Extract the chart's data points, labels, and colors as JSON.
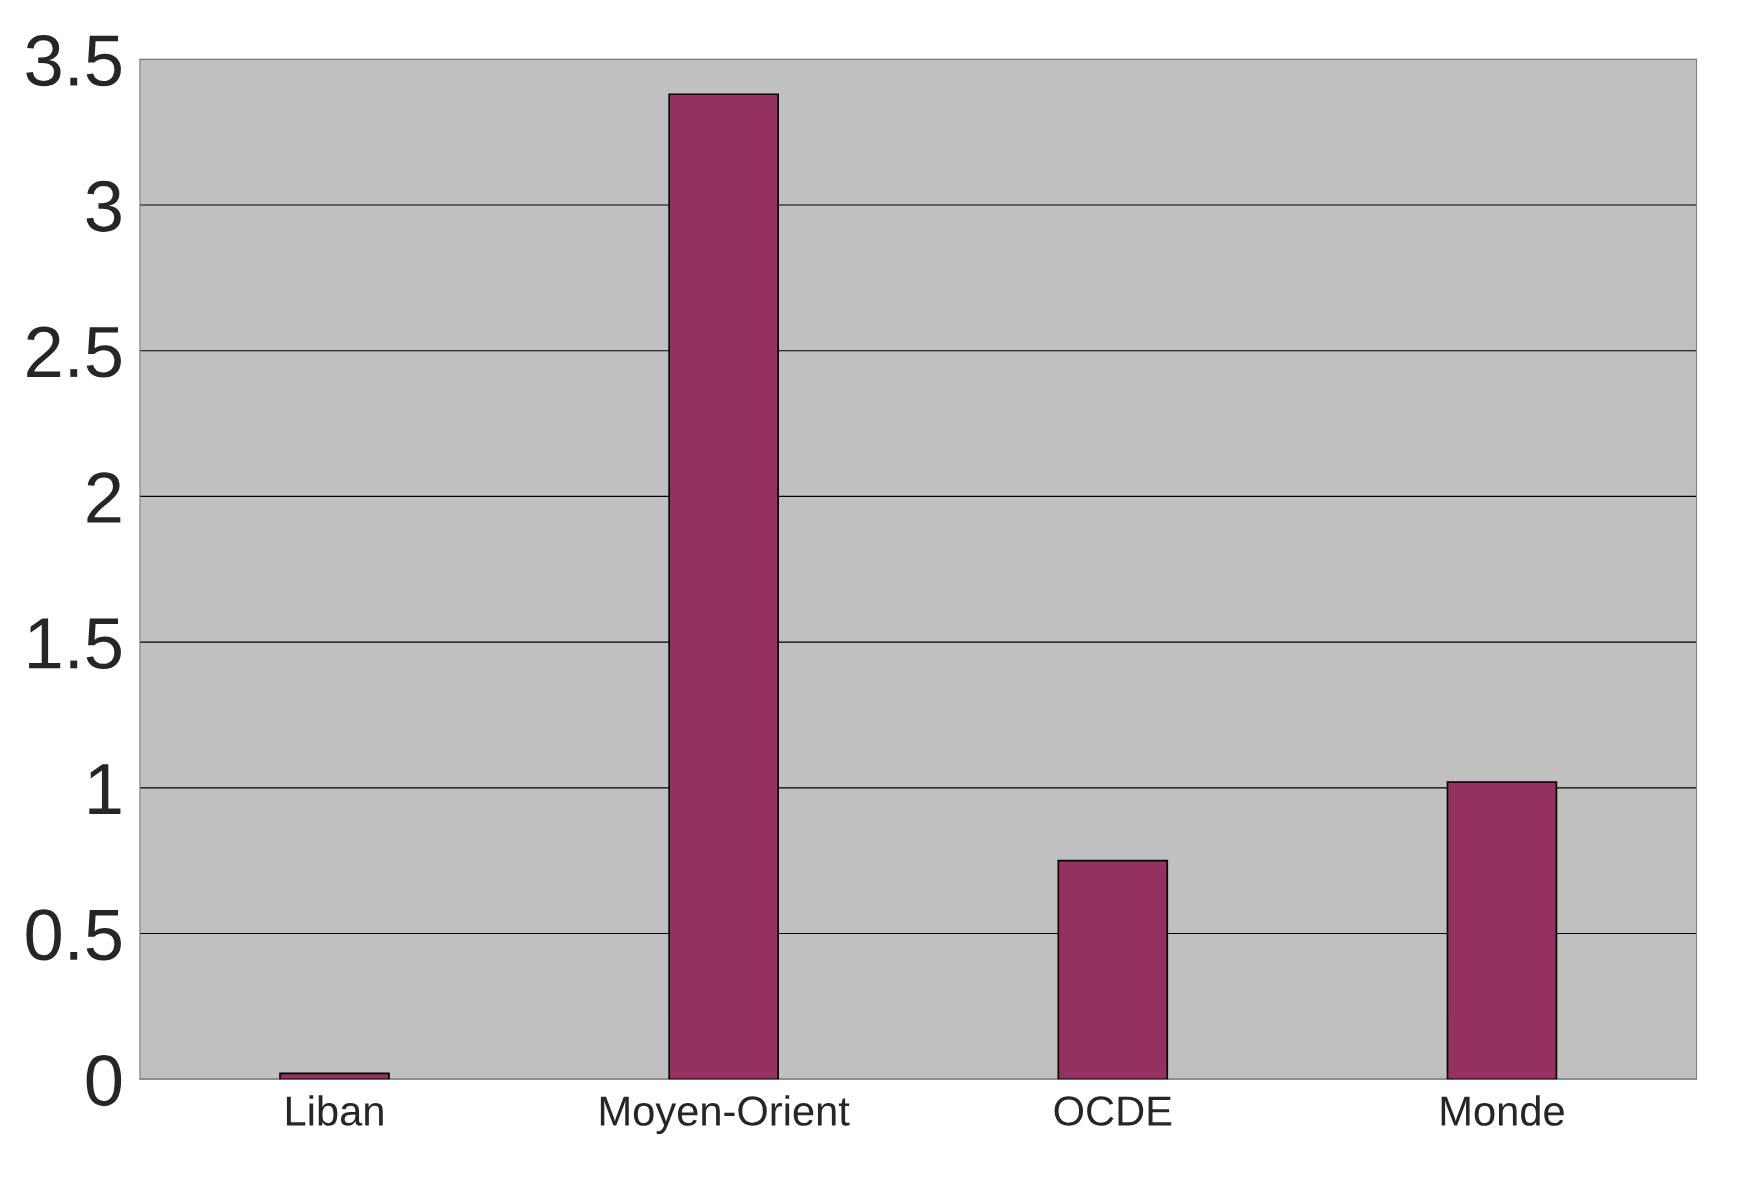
{
  "chart_data": {
    "type": "bar",
    "categories": [
      "Liban",
      "Moyen-Orient",
      "OCDE",
      "Monde"
    ],
    "values": [
      0.02,
      3.38,
      0.75,
      1.02
    ],
    "color": "#953160",
    "ylim": [
      0,
      3.5
    ],
    "yticks": [
      0,
      0.5,
      1,
      1.5,
      2,
      2.5,
      3,
      3.5
    ],
    "grid": "y"
  }
}
